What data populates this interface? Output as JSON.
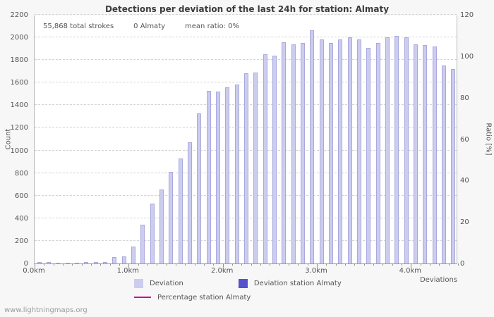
{
  "title": "Detections per deviation of the last 24h for station: Almaty",
  "annotations": {
    "total_strokes": "55,868 total strokes",
    "station_strokes": "0 Almaty",
    "mean_ratio": "mean ratio: 0%"
  },
  "watermark": "www.lightningmaps.org",
  "legend": [
    {
      "label": "Deviation",
      "color": "#ccccee",
      "type": "square"
    },
    {
      "label": "Deviation station Almaty",
      "color": "#5353cc",
      "type": "square"
    },
    {
      "label": "Percentage station Almaty",
      "color": "#c4009e",
      "type": "line"
    }
  ],
  "chart_data": {
    "type": "bar",
    "title": "Detections per deviation of the last 24h for station: Almaty",
    "xlabel": "Deviations",
    "ylabel_left": "Count",
    "ylabel_right": "Ratio [%]",
    "x_range_km": [
      0,
      4.5
    ],
    "x_tick_labels": [
      "0.0km",
      "1.0km",
      "2.0km",
      "3.0km",
      "4.0km"
    ],
    "x_tick_km": [
      0,
      1,
      2,
      3,
      4
    ],
    "ylim_left": [
      0,
      2200
    ],
    "ylim_right": [
      0,
      120
    ],
    "y_ticks_left": [
      0,
      200,
      400,
      600,
      800,
      1000,
      1200,
      1400,
      1600,
      1800,
      2000,
      2200
    ],
    "y_ticks_right": [
      0,
      20,
      40,
      60,
      80,
      100,
      120
    ],
    "bar_step_km": 0.1,
    "categories_km": [
      0.0,
      0.1,
      0.2,
      0.3,
      0.4,
      0.5,
      0.6,
      0.7,
      0.8,
      0.9,
      1.0,
      1.1,
      1.2,
      1.3,
      1.4,
      1.5,
      1.6,
      1.7,
      1.8,
      1.9,
      2.0,
      2.1,
      2.2,
      2.3,
      2.4,
      2.5,
      2.6,
      2.7,
      2.8,
      2.9,
      3.0,
      3.1,
      3.2,
      3.3,
      3.4,
      3.5,
      3.6,
      3.7,
      3.8,
      3.9,
      4.0,
      4.1,
      4.2,
      4.3,
      4.4
    ],
    "series": [
      {
        "name": "Deviation",
        "color": "#ccccee",
        "values": [
          15,
          10,
          8,
          8,
          8,
          10,
          10,
          12,
          55,
          65,
          150,
          345,
          530,
          655,
          810,
          930,
          1075,
          1330,
          1530,
          1520,
          1560,
          1580,
          1680,
          1690,
          1850,
          1840,
          1960,
          1940,
          1950,
          2060,
          1980,
          1950,
          1980,
          2000,
          1980,
          1910,
          1950,
          2000,
          2010,
          2000,
          1940,
          1930,
          1920,
          1750,
          1720
        ]
      },
      {
        "name": "Deviation station Almaty",
        "color": "#5353cc",
        "values": [
          0,
          0,
          0,
          0,
          0,
          0,
          0,
          0,
          0,
          0,
          0,
          0,
          0,
          0,
          0,
          0,
          0,
          0,
          0,
          0,
          0,
          0,
          0,
          0,
          0,
          0,
          0,
          0,
          0,
          0,
          0,
          0,
          0,
          0,
          0,
          0,
          0,
          0,
          0,
          0,
          0,
          0,
          0,
          0,
          0
        ]
      },
      {
        "name": "Percentage station Almaty",
        "color": "#c4009e",
        "values": [
          0,
          0,
          0,
          0,
          0,
          0,
          0,
          0,
          0,
          0,
          0,
          0,
          0,
          0,
          0,
          0,
          0,
          0,
          0,
          0,
          0,
          0,
          0,
          0,
          0,
          0,
          0,
          0,
          0,
          0,
          0,
          0,
          0,
          0,
          0,
          0,
          0,
          0,
          0,
          0,
          0,
          0,
          0,
          0,
          0
        ]
      }
    ],
    "grid": true,
    "legend_position": "bottom"
  }
}
